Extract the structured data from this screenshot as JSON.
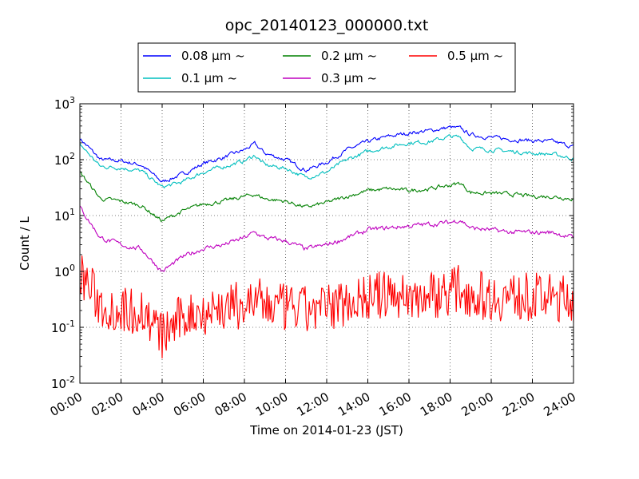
{
  "chart_data": {
    "type": "line",
    "title": "opc_20140123_000000.txt",
    "xlabel": "Time on 2014-01-23 (JST)",
    "ylabel": "Count / L",
    "xlim": [
      "00:00",
      "24:00"
    ],
    "ylim": [
      0.01,
      1000
    ],
    "yscale": "log",
    "grid": true,
    "legend_position": "top",
    "x_ticks": [
      "00:00",
      "02:00",
      "04:00",
      "06:00",
      "08:00",
      "10:00",
      "12:00",
      "14:00",
      "16:00",
      "18:00",
      "20:00",
      "22:00",
      "24:00"
    ],
    "y_ticks": [
      {
        "value": 0.01,
        "base": "10",
        "exp": "-2"
      },
      {
        "value": 0.1,
        "base": "10",
        "exp": "-1"
      },
      {
        "value": 1,
        "base": "10",
        "exp": "0"
      },
      {
        "value": 10,
        "base": "10",
        "exp": "1"
      },
      {
        "value": 100,
        "base": "10",
        "exp": "2"
      },
      {
        "value": 1000,
        "base": "10",
        "exp": "3"
      }
    ],
    "x": [
      "00:00",
      "01:00",
      "02:00",
      "03:00",
      "04:00",
      "05:00",
      "06:00",
      "07:00",
      "08:00",
      "08:30",
      "09:00",
      "10:00",
      "11:00",
      "12:00",
      "13:00",
      "14:00",
      "15:00",
      "16:00",
      "17:00",
      "18:00",
      "18:30",
      "19:00",
      "20:00",
      "21:00",
      "22:00",
      "23:00",
      "24:00"
    ],
    "series": [
      {
        "name": "0.08 μm ~",
        "color": "#0000ff",
        "values": [
          240,
          100,
          95,
          80,
          40,
          55,
          85,
          110,
          150,
          190,
          130,
          100,
          65,
          90,
          150,
          210,
          260,
          300,
          330,
          380,
          360,
          280,
          250,
          230,
          220,
          210,
          170
        ]
      },
      {
        "name": "0.1 μm ~",
        "color": "#00bfbf",
        "values": [
          190,
          75,
          72,
          62,
          32,
          40,
          60,
          75,
          95,
          120,
          80,
          70,
          48,
          60,
          100,
          140,
          170,
          200,
          210,
          260,
          250,
          160,
          150,
          140,
          130,
          125,
          105
        ]
      },
      {
        "name": "0.2 μm ~",
        "color": "#008000",
        "values": [
          60,
          20,
          18,
          15,
          8,
          12,
          16,
          18,
          22,
          24,
          20,
          18,
          14,
          17,
          22,
          28,
          30,
          28,
          30,
          35,
          38,
          26,
          25,
          24,
          22,
          22,
          20
        ]
      },
      {
        "name": "0.3 μm ~",
        "color": "#bf00bf",
        "values": [
          14,
          4,
          3,
          2.5,
          1,
          1.8,
          2.6,
          3,
          4,
          5,
          4,
          3.5,
          2.5,
          3,
          4,
          5.5,
          6,
          6.5,
          7,
          7.5,
          8.5,
          6,
          5.5,
          5,
          5,
          5,
          4
        ]
      },
      {
        "name": "0.5 μm ~",
        "color": "#ff0000",
        "values": [
          1.0,
          0.25,
          0.2,
          0.2,
          0.07,
          0.15,
          0.2,
          0.22,
          0.25,
          0.3,
          0.25,
          0.22,
          0.2,
          0.22,
          0.3,
          0.35,
          0.38,
          0.35,
          0.38,
          0.45,
          0.5,
          0.4,
          0.35,
          0.35,
          0.35,
          0.33,
          0.32
        ]
      }
    ]
  }
}
